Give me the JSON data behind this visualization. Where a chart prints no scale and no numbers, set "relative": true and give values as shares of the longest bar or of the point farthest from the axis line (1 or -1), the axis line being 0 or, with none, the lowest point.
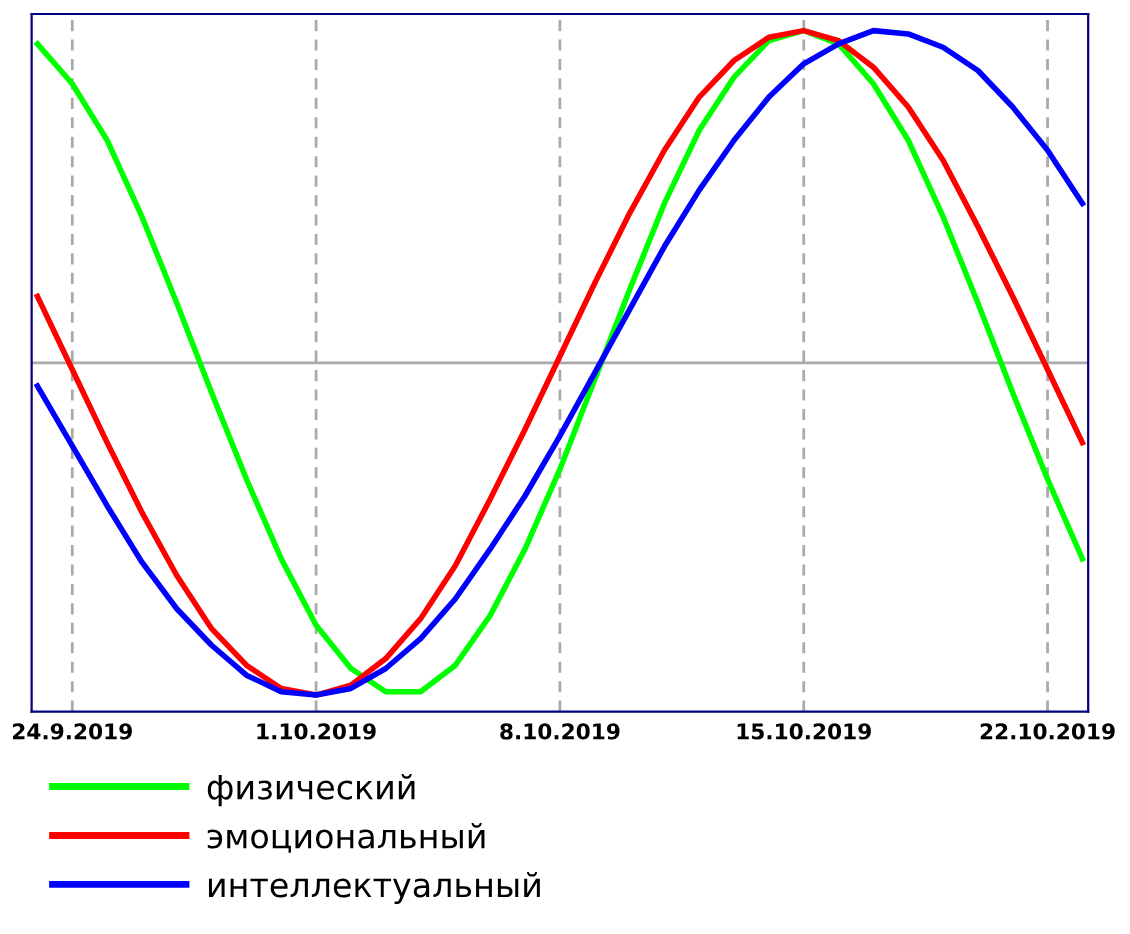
{
  "chart_data": {
    "type": "line",
    "relative": true,
    "x": [
      "2019-09-23",
      "2019-09-24",
      "2019-09-25",
      "2019-09-26",
      "2019-09-27",
      "2019-09-28",
      "2019-09-29",
      "2019-09-30",
      "2019-10-01",
      "2019-10-02",
      "2019-10-03",
      "2019-10-04",
      "2019-10-05",
      "2019-10-06",
      "2019-10-07",
      "2019-10-08",
      "2019-10-09",
      "2019-10-10",
      "2019-10-11",
      "2019-10-12",
      "2019-10-13",
      "2019-10-14",
      "2019-10-15",
      "2019-10-16",
      "2019-10-17",
      "2019-10-18",
      "2019-10-19",
      "2019-10-20",
      "2019-10-21",
      "2019-10-22",
      "2019-10-23"
    ],
    "xlim": [
      "2019-09-22T20:00",
      "2019-10-23T04:00"
    ],
    "xticks": [
      {
        "value": "2019-09-24",
        "label": "24.9.2019"
      },
      {
        "value": "2019-10-01",
        "label": "1.10.2019"
      },
      {
        "value": "2019-10-08",
        "label": "8.10.2019"
      },
      {
        "value": "2019-10-15",
        "label": "15.10.2019"
      },
      {
        "value": "2019-10-22",
        "label": "22.10.2019"
      }
    ],
    "tick_labels": "x",
    "grid": "x",
    "legend": "bottom",
    "line_style": "solid",
    "marker": "none",
    "ref_lines": [
      {
        "axis": "y",
        "value": 0,
        "color": "#aaaaaa"
      }
    ],
    "series": [
      {
        "name": "физический",
        "color": "#00ff00",
        "values": [
          0.96,
          0.84,
          0.67,
          0.44,
          0.18,
          -0.09,
          -0.35,
          -0.59,
          -0.79,
          -0.92,
          -0.99,
          -0.99,
          -0.91,
          -0.76,
          -0.56,
          -0.32,
          -0.05,
          0.22,
          0.48,
          0.7,
          0.86,
          0.97,
          1.0,
          0.96,
          0.84,
          0.67,
          0.44,
          0.18,
          -0.09,
          -0.35,
          -0.59
        ]
      },
      {
        "name": "эмоциональный",
        "color": "#ff0000",
        "values": [
          0.2,
          -0.02,
          -0.24,
          -0.45,
          -0.64,
          -0.8,
          -0.91,
          -0.98,
          -1.0,
          -0.97,
          -0.89,
          -0.77,
          -0.61,
          -0.41,
          -0.2,
          0.02,
          0.24,
          0.45,
          0.64,
          0.8,
          0.91,
          0.98,
          1.0,
          0.97,
          0.89,
          0.77,
          0.61,
          0.41,
          0.2,
          -0.02,
          -0.24
        ]
      },
      {
        "name": "интеллектуальный",
        "color": "#0000ff",
        "values": [
          -0.07,
          -0.25,
          -0.43,
          -0.6,
          -0.74,
          -0.85,
          -0.94,
          -0.99,
          -1.0,
          -0.98,
          -0.92,
          -0.83,
          -0.71,
          -0.56,
          -0.4,
          -0.22,
          -0.03,
          0.16,
          0.35,
          0.52,
          0.67,
          0.8,
          0.9,
          0.96,
          1.0,
          0.99,
          0.95,
          0.88,
          0.77,
          0.64,
          0.48
        ]
      }
    ]
  }
}
